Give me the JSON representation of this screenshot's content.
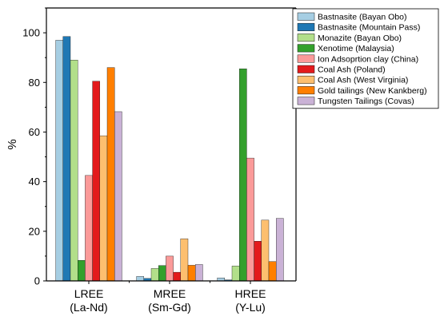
{
  "chart_data": {
    "type": "bar",
    "title": "",
    "xlabel": "",
    "ylabel": "%",
    "ylim": [
      0,
      110
    ],
    "yticks": [
      0,
      20,
      40,
      60,
      80,
      100
    ],
    "grid": false,
    "legend_position": "top-right",
    "categories": [
      {
        "line1": "LREE",
        "line2": "(La-Nd)"
      },
      {
        "line1": "MREE",
        "line2": "(Sm-Gd)"
      },
      {
        "line1": "HREE",
        "line2": "(Y-Lu)"
      }
    ],
    "series": [
      {
        "name": "Bastnasite (Bayan Obo)",
        "color": "#a6cee3",
        "values": [
          97.0,
          1.8,
          1.2
        ]
      },
      {
        "name": "Bastnasite (Mountain Pass)",
        "color": "#1f78b4",
        "values": [
          98.5,
          1.0,
          0.4
        ]
      },
      {
        "name": "Monazite (Bayan Obo)",
        "color": "#b2df8a",
        "values": [
          89.0,
          5.0,
          6.0
        ]
      },
      {
        "name": "Xenotime (Malaysia)",
        "color": "#33a02c",
        "values": [
          8.3,
          6.2,
          85.5
        ]
      },
      {
        "name": "Ion Adsoprtion clay (China)",
        "color": "#fb9a99",
        "values": [
          42.5,
          10.0,
          49.5
        ]
      },
      {
        "name": "Coal Ash (Poland)",
        "color": "#e31a1c",
        "values": [
          80.5,
          3.5,
          16.0
        ]
      },
      {
        "name": "Coal Ash (West Virginia)",
        "color": "#fdbf6f",
        "values": [
          58.5,
          17.0,
          24.5
        ]
      },
      {
        "name": "Gold tailings (New Kankberg)",
        "color": "#ff7f00",
        "values": [
          86.0,
          6.3,
          7.8
        ]
      },
      {
        "name": "Tungsten Tailings (Covas)",
        "color": "#cab2d6",
        "values": [
          68.2,
          6.6,
          25.2
        ]
      }
    ]
  }
}
